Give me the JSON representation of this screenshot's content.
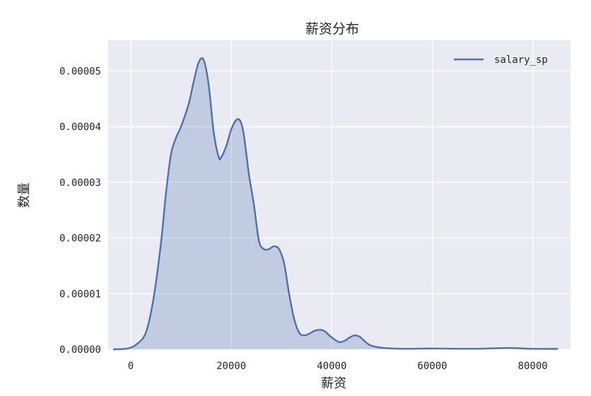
{
  "chart_data": {
    "type": "area",
    "title": "薪资分布",
    "xlabel": "薪资",
    "ylabel": "数量",
    "xlim": [
      -4500,
      87500
    ],
    "ylim": [
      0,
      5.55e-05
    ],
    "grid": true,
    "legend_placement": "top-right",
    "xticks": [
      0,
      20000,
      40000,
      60000,
      80000
    ],
    "xtick_labels": [
      "0",
      "20000",
      "40000",
      "60000",
      "80000"
    ],
    "yticks": [
      0,
      1e-05,
      2e-05,
      3e-05,
      4e-05,
      5e-05
    ],
    "ytick_labels": [
      "0.00000",
      "0.00001",
      "0.00002",
      "0.00003",
      "0.00004",
      "0.00005"
    ],
    "colors": {
      "line": "#4c72b0",
      "background": "#eaeaf2",
      "grid": "#ffffff"
    },
    "series": [
      {
        "name": "salary_sp",
        "x": [
          -3500,
          -1000,
          1000,
          3000,
          4500,
          6000,
          7000,
          8000,
          9000,
          10000,
          11500,
          12500,
          13500,
          14500,
          15500,
          16500,
          17500,
          18000,
          19000,
          20000,
          21000,
          21800,
          22500,
          23500,
          24500,
          25500,
          26500,
          27500,
          28500,
          29500,
          30500,
          31500,
          32500,
          33500,
          34500,
          35500,
          36500,
          37500,
          38500,
          39500,
          40500,
          41500,
          42500,
          43500,
          44500,
          45500,
          46500,
          47500,
          49000,
          51000,
          54000,
          60000,
          65000,
          70000,
          75000,
          80000,
          85000
        ],
        "y": [
          0,
          1e-07,
          8e-07,
          3e-06,
          9e-06,
          1.9e-05,
          2.8e-05,
          3.5e-05,
          3.8e-05,
          4e-05,
          4.4e-05,
          4.8e-05,
          5.15e-05,
          5.2e-05,
          4.75e-05,
          3.9e-05,
          3.45e-05,
          3.45e-05,
          3.65e-05,
          3.95e-05,
          4.12e-05,
          4.1e-05,
          3.85e-05,
          3.15e-05,
          2.6e-05,
          1.95e-05,
          1.8e-05,
          1.8e-05,
          1.85e-05,
          1.8e-05,
          1.55e-05,
          1e-05,
          5.5e-06,
          3e-06,
          2.5e-06,
          2.8e-06,
          3.3e-06,
          3.5e-06,
          3.3e-06,
          2.5e-06,
          1.8e-06,
          1.3e-06,
          1.5e-06,
          2.1e-06,
          2.5e-06,
          2.3e-06,
          1.5e-06,
          8e-07,
          4e-07,
          2e-07,
          1e-07,
          1.5e-07,
          1e-07,
          1.2e-07,
          2.5e-07,
          1e-07,
          8e-08
        ]
      }
    ]
  }
}
